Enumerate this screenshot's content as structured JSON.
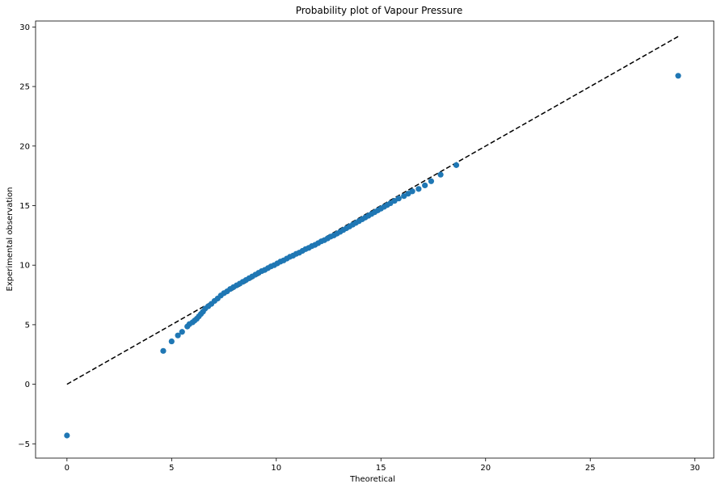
{
  "chart_data": {
    "type": "scatter",
    "title": "Probability plot of Vapour Pressure",
    "xlabel": "Theoretical",
    "ylabel": "Experimental observation",
    "xlim": [
      -1.5,
      30.9
    ],
    "ylim": [
      -6.2,
      30.5
    ],
    "xticks": [
      0,
      5,
      10,
      15,
      20,
      25,
      30
    ],
    "yticks": [
      -5,
      0,
      5,
      10,
      15,
      20,
      25,
      30
    ],
    "grid": false,
    "colors": {
      "points": "#1f77b4",
      "reference_line": "#000000"
    },
    "reference_line": {
      "style": "dashed",
      "x": [
        0,
        29.2
      ],
      "y": [
        0,
        29.2
      ]
    },
    "points": [
      [
        0.0,
        -4.3
      ],
      [
        4.6,
        2.8
      ],
      [
        5.0,
        3.6
      ],
      [
        5.3,
        4.1
      ],
      [
        5.5,
        4.4
      ],
      [
        5.75,
        4.85
      ],
      [
        5.85,
        5.05
      ],
      [
        6.0,
        5.2
      ],
      [
        6.1,
        5.35
      ],
      [
        6.2,
        5.5
      ],
      [
        6.3,
        5.7
      ],
      [
        6.4,
        5.9
      ],
      [
        6.5,
        6.1
      ],
      [
        6.6,
        6.35
      ],
      [
        6.75,
        6.55
      ],
      [
        6.9,
        6.75
      ],
      [
        7.05,
        7.0
      ],
      [
        7.2,
        7.2
      ],
      [
        7.35,
        7.45
      ],
      [
        7.5,
        7.65
      ],
      [
        7.65,
        7.8
      ],
      [
        7.8,
        8.0
      ],
      [
        7.95,
        8.15
      ],
      [
        8.1,
        8.3
      ],
      [
        8.25,
        8.45
      ],
      [
        8.4,
        8.6
      ],
      [
        8.55,
        8.75
      ],
      [
        8.7,
        8.9
      ],
      [
        8.85,
        9.05
      ],
      [
        9.0,
        9.2
      ],
      [
        9.15,
        9.35
      ],
      [
        9.3,
        9.5
      ],
      [
        9.45,
        9.6
      ],
      [
        9.6,
        9.75
      ],
      [
        9.75,
        9.9
      ],
      [
        9.9,
        10.0
      ],
      [
        10.05,
        10.15
      ],
      [
        10.2,
        10.3
      ],
      [
        10.35,
        10.4
      ],
      [
        10.5,
        10.55
      ],
      [
        10.65,
        10.7
      ],
      [
        10.8,
        10.8
      ],
      [
        10.95,
        10.95
      ],
      [
        11.1,
        11.05
      ],
      [
        11.25,
        11.2
      ],
      [
        11.4,
        11.35
      ],
      [
        11.55,
        11.45
      ],
      [
        11.7,
        11.6
      ],
      [
        11.85,
        11.7
      ],
      [
        12.0,
        11.85
      ],
      [
        12.15,
        12.0
      ],
      [
        12.3,
        12.1
      ],
      [
        12.45,
        12.25
      ],
      [
        12.6,
        12.4
      ],
      [
        12.75,
        12.5
      ],
      [
        12.9,
        12.65
      ],
      [
        13.05,
        12.8
      ],
      [
        13.2,
        12.95
      ],
      [
        13.35,
        13.1
      ],
      [
        13.5,
        13.25
      ],
      [
        13.65,
        13.4
      ],
      [
        13.8,
        13.55
      ],
      [
        13.95,
        13.7
      ],
      [
        14.1,
        13.85
      ],
      [
        14.25,
        14.0
      ],
      [
        14.4,
        14.15
      ],
      [
        14.55,
        14.3
      ],
      [
        14.7,
        14.45
      ],
      [
        14.85,
        14.6
      ],
      [
        15.0,
        14.75
      ],
      [
        15.15,
        14.9
      ],
      [
        15.3,
        15.05
      ],
      [
        15.45,
        15.2
      ],
      [
        15.65,
        15.4
      ],
      [
        15.85,
        15.6
      ],
      [
        16.1,
        15.8
      ],
      [
        16.3,
        16.0
      ],
      [
        16.5,
        16.2
      ],
      [
        16.8,
        16.4
      ],
      [
        17.1,
        16.7
      ],
      [
        17.4,
        17.05
      ],
      [
        17.85,
        17.6
      ],
      [
        18.6,
        18.4
      ],
      [
        29.2,
        25.9
      ]
    ]
  }
}
